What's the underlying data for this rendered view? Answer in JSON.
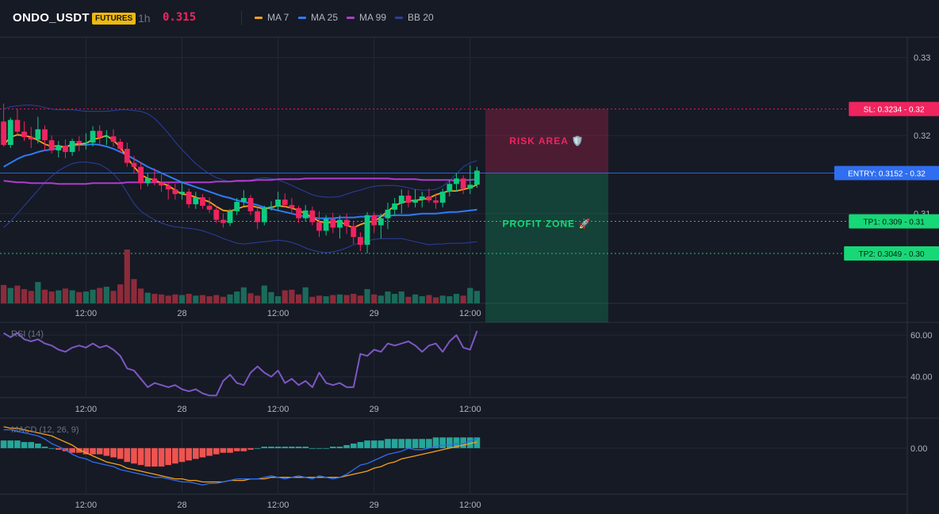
{
  "header": {
    "symbol": "ONDO_USDT",
    "badge": "FUTURES",
    "timeframe": "1h",
    "price": "0.315",
    "legend": [
      {
        "label": "MA 7",
        "color": "#f7a21b"
      },
      {
        "label": "MA 25",
        "color": "#2f7bf5"
      },
      {
        "label": "MA 99",
        "color": "#b03ccd"
      },
      {
        "label": "BB 20",
        "color": "#2d3f9e"
      }
    ]
  },
  "colors": {
    "up": "#0ecb81",
    "down": "#f0245f",
    "up_vol": "#1b6b5a",
    "down_vol": "#8c2b3a",
    "bg": "#161a25",
    "grid": "#232836"
  },
  "chart_data": {
    "type": "candlestick",
    "timeframe": "1h",
    "x_ticks": [
      "12:00",
      "28",
      "12:00",
      "29",
      "12:00"
    ],
    "y_ticks": [
      "0.33",
      "0.32",
      "0.31"
    ],
    "ylim": [
      0.2985,
      0.3325
    ],
    "candles": [
      [
        0.3218,
        0.3241,
        0.3186,
        0.3188
      ],
      [
        0.3188,
        0.3223,
        0.3184,
        0.322
      ],
      [
        0.322,
        0.3234,
        0.3201,
        0.3205
      ],
      [
        0.3205,
        0.3218,
        0.3193,
        0.3198
      ],
      [
        0.3198,
        0.3211,
        0.3184,
        0.3195
      ],
      [
        0.3195,
        0.3224,
        0.319,
        0.3208
      ],
      [
        0.3208,
        0.3213,
        0.318,
        0.3194
      ],
      [
        0.3194,
        0.32,
        0.3177,
        0.3181
      ],
      [
        0.3181,
        0.3193,
        0.3172,
        0.3187
      ],
      [
        0.3187,
        0.3195,
        0.3171,
        0.3179
      ],
      [
        0.3179,
        0.3196,
        0.3174,
        0.3193
      ],
      [
        0.3193,
        0.3199,
        0.318,
        0.319
      ],
      [
        0.319,
        0.3203,
        0.3182,
        0.3191
      ],
      [
        0.3191,
        0.3212,
        0.3186,
        0.3206
      ],
      [
        0.3206,
        0.3213,
        0.3188,
        0.3198
      ],
      [
        0.3198,
        0.3207,
        0.3188,
        0.3199
      ],
      [
        0.3199,
        0.3208,
        0.3186,
        0.3192
      ],
      [
        0.3192,
        0.3196,
        0.3178,
        0.3183
      ],
      [
        0.3183,
        0.3191,
        0.316,
        0.3165
      ],
      [
        0.3165,
        0.3174,
        0.3151,
        0.316
      ],
      [
        0.316,
        0.3166,
        0.3131,
        0.3139
      ],
      [
        0.3139,
        0.3152,
        0.3135,
        0.3145
      ],
      [
        0.3145,
        0.3158,
        0.3136,
        0.314
      ],
      [
        0.314,
        0.315,
        0.3128,
        0.3136
      ],
      [
        0.3136,
        0.3141,
        0.3118,
        0.3131
      ],
      [
        0.3131,
        0.3138,
        0.3118,
        0.3125
      ],
      [
        0.3125,
        0.314,
        0.3118,
        0.3128
      ],
      [
        0.3128,
        0.3132,
        0.3107,
        0.3112
      ],
      [
        0.3112,
        0.3128,
        0.3106,
        0.3121
      ],
      [
        0.3121,
        0.3125,
        0.3106,
        0.311
      ],
      [
        0.311,
        0.3121,
        0.3101,
        0.3105
      ],
      [
        0.3105,
        0.311,
        0.3088,
        0.3092
      ],
      [
        0.3092,
        0.31,
        0.3082,
        0.3088
      ],
      [
        0.3088,
        0.3106,
        0.3084,
        0.3103
      ],
      [
        0.3103,
        0.312,
        0.3098,
        0.3115
      ],
      [
        0.3115,
        0.313,
        0.311,
        0.312
      ],
      [
        0.312,
        0.3124,
        0.3098,
        0.3103
      ],
      [
        0.3103,
        0.3108,
        0.308,
        0.3089
      ],
      [
        0.3089,
        0.311,
        0.3085,
        0.3107
      ],
      [
        0.3107,
        0.3116,
        0.3104,
        0.3109
      ],
      [
        0.3109,
        0.3128,
        0.3104,
        0.3118
      ],
      [
        0.3118,
        0.3126,
        0.3108,
        0.3111
      ],
      [
        0.3111,
        0.312,
        0.31,
        0.3107
      ],
      [
        0.3107,
        0.311,
        0.3088,
        0.3094
      ],
      [
        0.3094,
        0.3111,
        0.309,
        0.3104
      ],
      [
        0.3104,
        0.3109,
        0.3085,
        0.3089
      ],
      [
        0.3089,
        0.3103,
        0.307,
        0.3078
      ],
      [
        0.3078,
        0.3098,
        0.3072,
        0.3093
      ],
      [
        0.3093,
        0.3101,
        0.3075,
        0.3082
      ],
      [
        0.3082,
        0.3098,
        0.3068,
        0.3092
      ],
      [
        0.3092,
        0.31,
        0.3074,
        0.3084
      ],
      [
        0.3084,
        0.309,
        0.3061,
        0.307
      ],
      [
        0.307,
        0.3076,
        0.3052,
        0.306
      ],
      [
        0.306,
        0.3102,
        0.3049,
        0.3098
      ],
      [
        0.3098,
        0.3102,
        0.3075,
        0.3085
      ],
      [
        0.3085,
        0.31,
        0.3068,
        0.3094
      ],
      [
        0.3094,
        0.3114,
        0.308,
        0.3105
      ],
      [
        0.3105,
        0.312,
        0.3097,
        0.3113
      ],
      [
        0.3113,
        0.3131,
        0.31,
        0.3123
      ],
      [
        0.3123,
        0.313,
        0.3108,
        0.3114
      ],
      [
        0.3114,
        0.3131,
        0.3108,
        0.3118
      ],
      [
        0.3118,
        0.3128,
        0.3108,
        0.3122
      ],
      [
        0.3122,
        0.3132,
        0.3114,
        0.3117
      ],
      [
        0.3117,
        0.3126,
        0.3106,
        0.3114
      ],
      [
        0.3114,
        0.3132,
        0.3108,
        0.3128
      ],
      [
        0.3128,
        0.3143,
        0.3122,
        0.3138
      ],
      [
        0.3138,
        0.3152,
        0.3128,
        0.3145
      ],
      [
        0.3145,
        0.3149,
        0.3125,
        0.3132
      ],
      [
        0.3132,
        0.3162,
        0.3125,
        0.3137
      ],
      [
        0.3137,
        0.316,
        0.3133,
        0.3155
      ]
    ],
    "volumes": [
      3.1,
      2.6,
      3.0,
      2.4,
      2.1,
      3.6,
      2.3,
      2.0,
      2.2,
      2.5,
      2.2,
      1.9,
      2.0,
      2.3,
      2.6,
      2.8,
      2.1,
      3.2,
      9.1,
      4.1,
      2.5,
      1.8,
      1.6,
      1.5,
      1.3,
      1.5,
      1.4,
      1.6,
      1.3,
      1.4,
      1.2,
      1.4,
      1.1,
      1.5,
      2.0,
      2.7,
      1.7,
      1.3,
      3.0,
      1.9,
      1.2,
      2.2,
      2.3,
      1.5,
      2.7,
      1.1,
      1.3,
      1.2,
      1.4,
      1.5,
      1.4,
      1.6,
      1.3,
      2.4,
      1.5,
      1.3,
      2.0,
      1.6,
      2.0,
      1.1,
      1.5,
      1.2,
      1.4,
      1.0,
      1.3,
      1.2,
      1.6,
      1.3,
      2.6,
      2.1
    ],
    "ma7": [
      0.3188,
      0.3198,
      0.3201,
      0.32,
      0.3198,
      0.3194,
      0.3189,
      0.3186,
      0.3187,
      0.3185,
      0.3189,
      0.3189,
      0.319,
      0.3195,
      0.3197,
      0.32,
      0.3194,
      0.3185,
      0.3172,
      0.316,
      0.315,
      0.3145,
      0.3143,
      0.3139,
      0.3136,
      0.313,
      0.3125,
      0.3124,
      0.3121,
      0.3118,
      0.3115,
      0.3109,
      0.3104,
      0.3103,
      0.3106,
      0.3109,
      0.311,
      0.3108,
      0.3106,
      0.3108,
      0.311,
      0.3109,
      0.3107,
      0.3104,
      0.31,
      0.3095,
      0.309,
      0.3088,
      0.3089,
      0.309,
      0.3085,
      0.3082,
      0.3086,
      0.3089,
      0.309,
      0.3096,
      0.3103,
      0.311,
      0.3114,
      0.3116,
      0.3117,
      0.3118,
      0.312,
      0.3124,
      0.3127,
      0.3129,
      0.3129,
      0.3131,
      0.3133,
      0.3137
    ],
    "ma25": [
      0.316,
      0.3165,
      0.317,
      0.3174,
      0.3176,
      0.3179,
      0.3181,
      0.3182,
      0.3184,
      0.3186,
      0.3187,
      0.3188,
      0.3188,
      0.3189,
      0.3188,
      0.3186,
      0.3183,
      0.3179,
      0.3175,
      0.317,
      0.3165,
      0.316,
      0.3156,
      0.3152,
      0.3148,
      0.3144,
      0.314,
      0.3137,
      0.3134,
      0.3131,
      0.3128,
      0.3125,
      0.3122,
      0.312,
      0.3117,
      0.3115,
      0.3113,
      0.3111,
      0.3108,
      0.3106,
      0.3104,
      0.3102,
      0.31,
      0.3098,
      0.3096,
      0.3095,
      0.3094,
      0.3094,
      0.3094,
      0.3095,
      0.3095,
      0.3095,
      0.3096,
      0.3096,
      0.3097,
      0.3097,
      0.3097,
      0.3098,
      0.3098,
      0.3098,
      0.3099,
      0.31,
      0.31,
      0.31,
      0.3101,
      0.3102,
      0.3102,
      0.3103,
      0.3104,
      0.3105
    ],
    "ma99": [
      0.3142,
      0.3141,
      0.314,
      0.314,
      0.3139,
      0.3139,
      0.3139,
      0.3139,
      0.3138,
      0.3138,
      0.3138,
      0.3138,
      0.3138,
      0.3139,
      0.3139,
      0.3139,
      0.3139,
      0.3139,
      0.314,
      0.314,
      0.314,
      0.314,
      0.314,
      0.314,
      0.314,
      0.314,
      0.314,
      0.314,
      0.314,
      0.314,
      0.314,
      0.3141,
      0.3141,
      0.3141,
      0.3142,
      0.3142,
      0.3142,
      0.3143,
      0.3143,
      0.3143,
      0.3144,
      0.3144,
      0.3144,
      0.3144,
      0.3145,
      0.3145,
      0.3145,
      0.3145,
      0.3145,
      0.3145,
      0.3145,
      0.3145,
      0.3145,
      0.3145,
      0.3145,
      0.3145,
      0.3145,
      0.3144,
      0.3144,
      0.3144,
      0.3144,
      0.3143,
      0.3143,
      0.3143,
      0.3143,
      0.3143,
      0.3142,
      0.3143,
      0.3143,
      0.3144
    ],
    "bb_upper": [
      0.3234,
      0.3237,
      0.3238,
      0.3239,
      0.3239,
      0.3238,
      0.3236,
      0.3234,
      0.3233,
      0.3233,
      0.3233,
      0.3232,
      0.3231,
      0.3231,
      0.3231,
      0.3231,
      0.3232,
      0.3233,
      0.3233,
      0.3232,
      0.3231,
      0.3228,
      0.3222,
      0.3213,
      0.3203,
      0.3192,
      0.3182,
      0.3173,
      0.3164,
      0.3157,
      0.3151,
      0.3146,
      0.3143,
      0.3141,
      0.3141,
      0.3141,
      0.3143,
      0.3145,
      0.3146,
      0.3145,
      0.3143,
      0.314,
      0.3136,
      0.3132,
      0.3128,
      0.3124,
      0.3122,
      0.3121,
      0.3121,
      0.3122,
      0.3125,
      0.3128,
      0.313,
      0.3133,
      0.3135,
      0.3136,
      0.3136,
      0.3136,
      0.3135,
      0.3133,
      0.3131,
      0.313,
      0.313,
      0.3131,
      0.3135,
      0.3142,
      0.3151,
      0.316,
      0.3165,
      0.3168
    ],
    "bb_lower": [
      0.3082,
      0.309,
      0.31,
      0.311,
      0.312,
      0.313,
      0.314,
      0.3148,
      0.3155,
      0.316,
      0.3164,
      0.3166,
      0.3166,
      0.3165,
      0.3163,
      0.3158,
      0.3151,
      0.3141,
      0.3127,
      0.3113,
      0.3103,
      0.3097,
      0.3092,
      0.3088,
      0.3085,
      0.3083,
      0.3082,
      0.3081,
      0.308,
      0.3078,
      0.3075,
      0.3072,
      0.3068,
      0.3065,
      0.3062,
      0.3061,
      0.3062,
      0.3063,
      0.3064,
      0.3065,
      0.3066,
      0.3065,
      0.3063,
      0.306,
      0.3056,
      0.3053,
      0.3051,
      0.305,
      0.3051,
      0.3053,
      0.3056,
      0.306,
      0.3063,
      0.3065,
      0.3067,
      0.3068,
      0.3068,
      0.3068,
      0.3068,
      0.3066,
      0.3064,
      0.3062,
      0.306,
      0.3061,
      0.3061,
      0.3062,
      0.3062,
      0.3062,
      0.3063,
      0.3064
    ],
    "levels": [
      {
        "label": "SL: 0.3234 - 0.32",
        "value": 0.3234,
        "color": "#f0245f",
        "text": "#ffffff"
      },
      {
        "label": "ENTRY: 0.3152 - 0.32",
        "value": 0.3152,
        "color": "#2f6ef0",
        "text": "#ffffff"
      },
      {
        "label": "TP1: 0.309 - 0.31",
        "value": 0.309,
        "color": "#17d877",
        "text": "#0b1a10"
      },
      {
        "label": "TP2: 0.3049 - 0.30",
        "value": 0.3049,
        "color": "#17d877",
        "text": "#0b1a10"
      }
    ],
    "zones": [
      {
        "label": "RISK AREA 🛡️",
        "from": 0.3152,
        "to": 0.3234,
        "color": "#f0245f"
      },
      {
        "label": "PROFIT ZONE 🚀",
        "from": 0.3152,
        "to": 0.3,
        "color": "#0ecb81"
      }
    ],
    "rsi": {
      "label": "RSI (14)",
      "y_ticks": [
        "60.00",
        "40.00"
      ],
      "ylim": [
        30,
        65
      ],
      "values": [
        61,
        59,
        61,
        58,
        57,
        58,
        56,
        55,
        53,
        52,
        54,
        55,
        54,
        56,
        54,
        55,
        53,
        50,
        44,
        43,
        39,
        35,
        37,
        36,
        35,
        36,
        34,
        33,
        34,
        32,
        31,
        31,
        38,
        41,
        37,
        36,
        42,
        45,
        42,
        40,
        43,
        37,
        39,
        36,
        38,
        35,
        42,
        37,
        36,
        37,
        35,
        35,
        51,
        50,
        53,
        52,
        56,
        55,
        56,
        57,
        55,
        52,
        55,
        56,
        52,
        57,
        60,
        54,
        53,
        62
      ],
      "color": "#7e57c2"
    },
    "macd": {
      "label": "MACD (12, 26, 9)",
      "y_ticks": [
        "0.00"
      ],
      "ylim": [
        -0.003,
        0.0018
      ],
      "hist": [
        0.0005,
        0.0005,
        0.0005,
        0.0004,
        0.0004,
        0.0003,
        0.0001,
        0.0,
        -0.0001,
        -0.0002,
        -0.0003,
        -0.0003,
        -0.0004,
        -0.0004,
        -0.0004,
        -0.0005,
        -0.0006,
        -0.0007,
        -0.0009,
        -0.001,
        -0.0011,
        -0.0012,
        -0.0012,
        -0.0012,
        -0.0011,
        -0.001,
        -0.0009,
        -0.0008,
        -0.0007,
        -0.0006,
        -0.0005,
        -0.0004,
        -0.0003,
        -0.0003,
        -0.0002,
        -0.0002,
        -0.0001,
        0.0,
        0.0001,
        0.0001,
        0.0001,
        0.0001,
        0.0001,
        0.0001,
        0.0001,
        0.0,
        0.0,
        0.0,
        0.0001,
        0.0001,
        0.0002,
        0.0003,
        0.0004,
        0.0005,
        0.0005,
        0.0005,
        0.0006,
        0.0006,
        0.0006,
        0.0006,
        0.0006,
        0.0006,
        0.0006,
        0.0007,
        0.0007,
        0.0007,
        0.0007,
        0.0007,
        0.0007,
        0.0007
      ],
      "macd_line": [
        0.0012,
        0.0012,
        0.0011,
        0.001,
        0.0009,
        0.0008,
        0.0006,
        0.0003,
        0.0001,
        -0.0001,
        -0.0004,
        -0.0006,
        -0.0007,
        -0.0009,
        -0.001,
        -0.0011,
        -0.0012,
        -0.0014,
        -0.0015,
        -0.0016,
        -0.0017,
        -0.0018,
        -0.0019,
        -0.0019,
        -0.002,
        -0.0021,
        -0.0022,
        -0.0022,
        -0.0023,
        -0.0024,
        -0.0023,
        -0.0023,
        -0.0022,
        -0.0021,
        -0.002,
        -0.002,
        -0.002,
        -0.002,
        -0.0019,
        -0.0018,
        -0.0019,
        -0.002,
        -0.0019,
        -0.0018,
        -0.0019,
        -0.002,
        -0.0018,
        -0.0019,
        -0.002,
        -0.0019,
        -0.0017,
        -0.0014,
        -0.0011,
        -0.001,
        -0.0008,
        -0.0006,
        -0.0004,
        -0.0003,
        -0.0002,
        0.0,
        -0.0001,
        -0.0001,
        0.0,
        0.0001,
        0.0002,
        0.0002,
        0.0003,
        0.0003,
        0.0005,
        0.0006
      ],
      "signal_line": [
        0.0014,
        0.0013,
        0.0013,
        0.0012,
        0.0011,
        0.001,
        0.0009,
        0.0008,
        0.0006,
        0.0004,
        0.0002,
        -0.0001,
        -0.0003,
        -0.0005,
        -0.0007,
        -0.0009,
        -0.001,
        -0.0011,
        -0.0013,
        -0.0014,
        -0.0015,
        -0.0016,
        -0.0017,
        -0.0018,
        -0.0019,
        -0.002,
        -0.002,
        -0.0021,
        -0.0021,
        -0.0022,
        -0.0022,
        -0.0022,
        -0.0022,
        -0.0021,
        -0.0021,
        -0.0021,
        -0.002,
        -0.002,
        -0.002,
        -0.0019,
        -0.0019,
        -0.0019,
        -0.0019,
        -0.0019,
        -0.0019,
        -0.0019,
        -0.0019,
        -0.0019,
        -0.0019,
        -0.0019,
        -0.0018,
        -0.0017,
        -0.0016,
        -0.0015,
        -0.0013,
        -0.0012,
        -0.001,
        -0.0009,
        -0.0007,
        -0.0006,
        -0.0005,
        -0.0004,
        -0.0003,
        -0.0002,
        -0.0001,
        0.0,
        0.0001,
        0.0002,
        0.0003,
        0.0004
      ],
      "macd_color": "#2f6ef0",
      "signal_color": "#f7a21b",
      "hist_pos": "#26a69a",
      "hist_neg": "#ef5350"
    }
  }
}
